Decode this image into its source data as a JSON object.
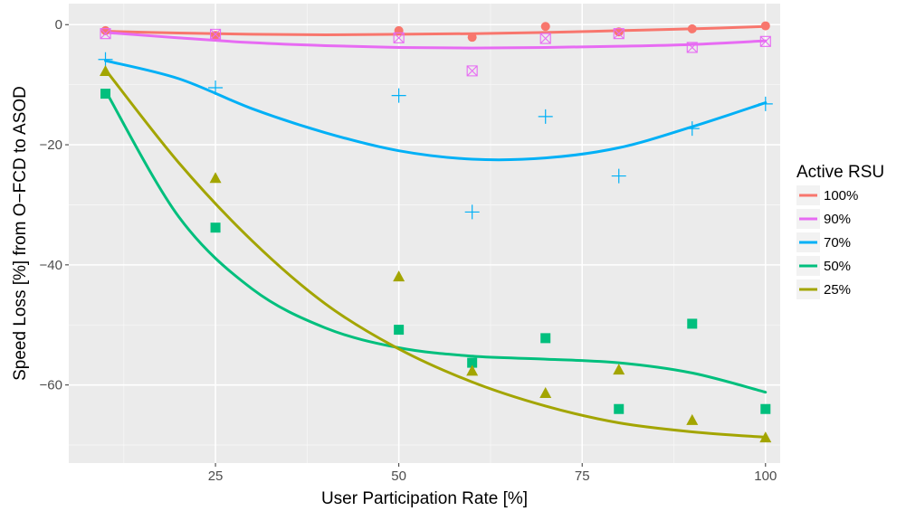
{
  "chart_data": {
    "type": "scatter",
    "title": "",
    "xlabel": "User Participation Rate [%]",
    "ylabel": "Speed Loss [%] from O−FCD to ASOD",
    "xlim": [
      5,
      102
    ],
    "ylim": [
      -73,
      3.5
    ],
    "x_ticks": [
      25,
      50,
      75,
      100
    ],
    "x_tick_labels": [
      "25",
      "50",
      "75",
      "100"
    ],
    "y_ticks": [
      0,
      -20,
      -40,
      -60
    ],
    "y_tick_labels": [
      "0",
      "−20",
      "−40",
      "−60"
    ],
    "grid": true,
    "smooth": "loess",
    "legend": {
      "title": "Active RSU",
      "position": "right"
    },
    "panel_background": "#ebebeb",
    "series": [
      {
        "name": "100%",
        "color": "#F8766D",
        "marker": "circle",
        "x": [
          10,
          25,
          50,
          60,
          70,
          80,
          90,
          100
        ],
        "y": [
          -1.0,
          -1.8,
          -1.0,
          -2.1,
          -0.3,
          -1.2,
          -0.7,
          -0.2
        ],
        "trend": [
          -1.1,
          -1.4,
          -1.6,
          -1.7,
          -1.6,
          -1.5,
          -1.3,
          -1.0,
          -0.7,
          -0.3
        ]
      },
      {
        "name": "90%",
        "color": "#E76BF3",
        "marker": "square-x",
        "x": [
          10,
          25,
          50,
          60,
          70,
          80,
          90,
          100
        ],
        "y": [
          -1.5,
          -1.6,
          -2.2,
          -7.7,
          -2.3,
          -1.5,
          -3.8,
          -2.8
        ],
        "trend": [
          -1.3,
          -2.2,
          -3.0,
          -3.5,
          -3.8,
          -3.9,
          -3.8,
          -3.6,
          -3.3,
          -2.7
        ]
      },
      {
        "name": "70%",
        "color": "#00B0F6",
        "marker": "plus",
        "x": [
          10,
          25,
          50,
          60,
          70,
          80,
          90,
          100
        ],
        "y": [
          -5.8,
          -10.5,
          -11.8,
          -31.2,
          -15.3,
          -25.2,
          -17.3,
          -13.2
        ],
        "trend": [
          -6.0,
          -9.0,
          -14.0,
          -18.0,
          -21.0,
          -22.4,
          -22.2,
          -20.5,
          -17.0,
          -13.0
        ]
      },
      {
        "name": "50%",
        "color": "#00BF7D",
        "marker": "square",
        "x": [
          10,
          25,
          50,
          60,
          70,
          80,
          90,
          100
        ],
        "y": [
          -11.5,
          -33.8,
          -50.8,
          -56.3,
          -52.2,
          -64.0,
          -49.8,
          -64.0
        ],
        "trend": [
          -11.0,
          -32.0,
          -44.0,
          -50.5,
          -53.8,
          -55.2,
          -55.7,
          -56.3,
          -58.0,
          -61.2
        ]
      },
      {
        "name": "25%",
        "color": "#A3A500",
        "marker": "triangle",
        "x": [
          10,
          25,
          50,
          60,
          70,
          80,
          90,
          100
        ],
        "y": [
          -7.8,
          -25.6,
          -42.0,
          -57.7,
          -61.4,
          -57.5,
          -65.9,
          -68.8
        ],
        "trend": [
          -7.5,
          -23.0,
          -36.0,
          -46.5,
          -54.0,
          -59.5,
          -63.5,
          -66.3,
          -67.8,
          -68.7
        ]
      }
    ],
    "trend_x": [
      10,
      20,
      30,
      40,
      50,
      60,
      70,
      80,
      90,
      100
    ]
  }
}
